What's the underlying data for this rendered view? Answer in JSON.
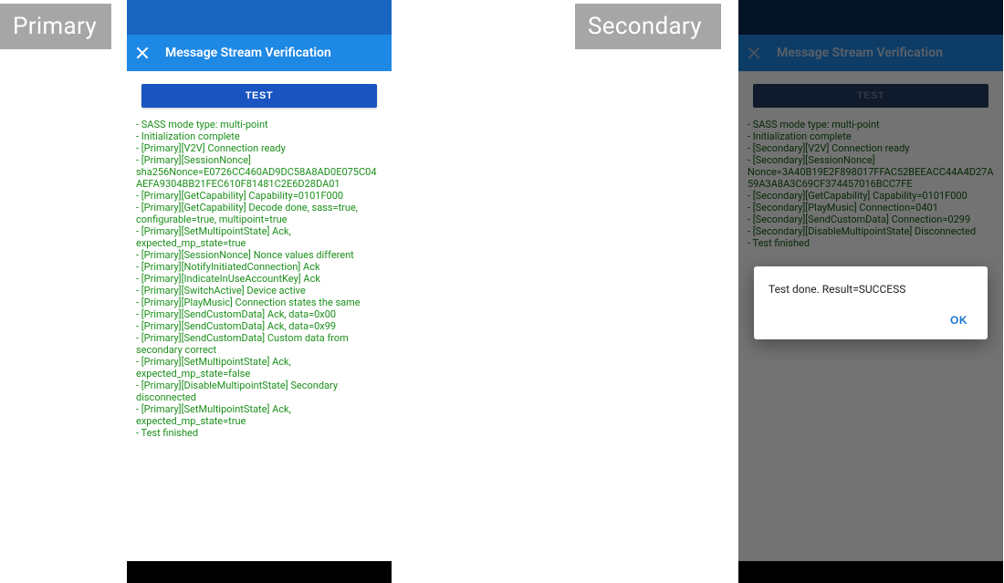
{
  "labels": {
    "primary": "Primary",
    "secondary": "Secondary"
  },
  "colors": {
    "statusbar_primary": "#1866c0",
    "statusbar_secondary": "#0d2a55",
    "appbar": "#1e88e5",
    "test_button": "#1a54c0",
    "log_text": "#1a8f1a",
    "tag_bg": "#a6a6a6",
    "dialog_ok": "#1976d2",
    "scrim": "rgba(0,0,0,0.55)"
  },
  "primary": {
    "appbar_title": "Message Stream Verification",
    "test_button_label": "TEST",
    "log_lines": [
      " - SASS mode type: multi-point",
      " - Initialization complete",
      " - [Primary][V2V] Connection ready",
      " - [Primary][SessionNonce] sha256Nonce=E0726CC460AD9DC58A8AD0E075C04AEFA9304BB21FEC610F81481C2E6D28DA01",
      " - [Primary][GetCapability] Capability=0101F000",
      " - [Primary][GetCapability] Decode done, sass=true, configurable=true, multipoint=true",
      " - [Primary][SetMultipointState] Ack, expected_mp_state=true",
      " - [Primary][SessionNonce] Nonce values different",
      " - [Primary][NotifyInitiatedConnection] Ack",
      " - [Primary][IndicateInUseAccountKey] Ack",
      " - [Primary][SwitchActive] Device active",
      " - [Primary][PlayMusic] Connection states the same",
      " - [Primary][SendCustomData] Ack, data=0x00",
      " - [Primary][SendCustomData] Ack, data=0x99",
      " - [Primary][SendCustomData] Custom data from secondary correct",
      " - [Primary][SetMultipointState] Ack, expected_mp_state=false",
      " - [Primary][DisableMultipointState] Secondary disconnected",
      " - [Primary][SetMultipointState] Ack, expected_mp_state=true",
      " - Test finished"
    ]
  },
  "secondary": {
    "appbar_title": "Message Stream Verification",
    "test_button_label": "TEST",
    "log_lines": [
      " - SASS mode type: multi-point",
      " - Initialization complete",
      " - [Secondary][V2V] Connection ready",
      " - [Secondary][SessionNonce] Nonce=3A40B19E2F898017FFAC52BEEACC44A4D27A59A3A8A3C69CF374457016BCC7FE",
      " - [Secondary][GetCapability] Capability=0101F000",
      " - [Secondary][PlayMusic] Connection=0401",
      " - [Secondary][SendCustomData] Connection=0299",
      " - [Secondary][DisableMultipointState] Disconnected",
      " - Test finished"
    ],
    "dialog": {
      "message": "Test done. Result=SUCCESS",
      "ok_label": "OK"
    }
  }
}
